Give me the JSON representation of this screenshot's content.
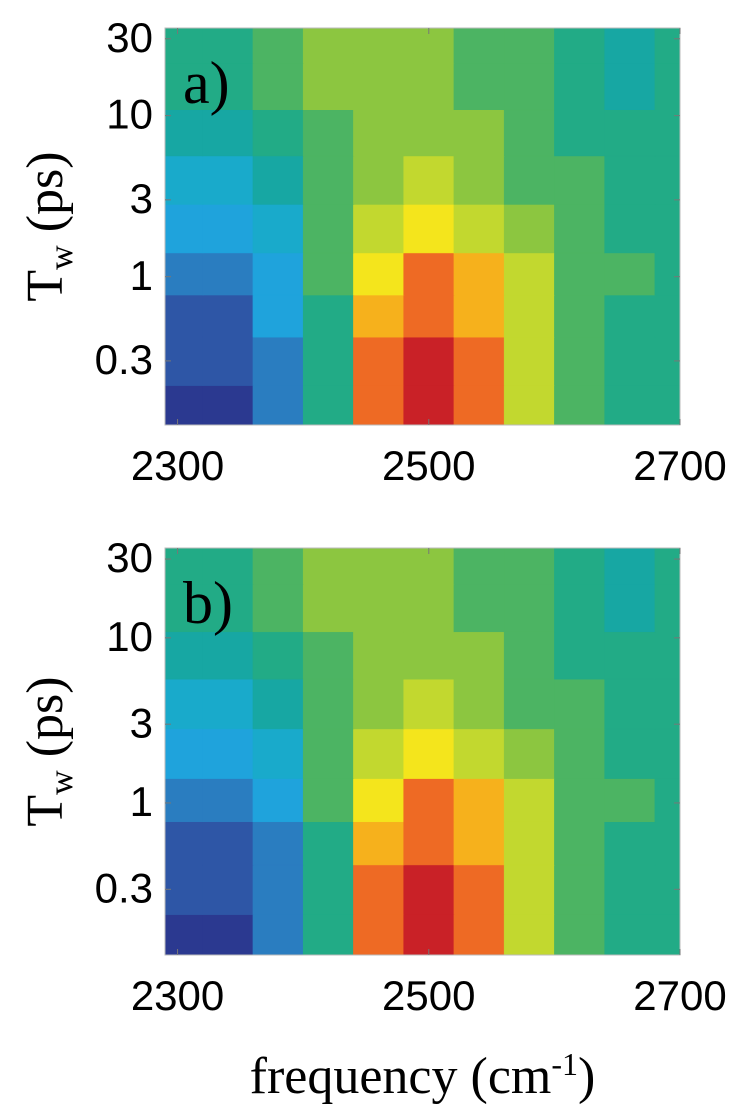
{
  "chart_data": [
    {
      "type": "contour",
      "panel_label": "a)",
      "ylabel": "T",
      "ylabel_sub": "w",
      "ylabel_rest": " (ps)",
      "x": [
        2300,
        2340,
        2380,
        2420,
        2460,
        2500,
        2540,
        2580,
        2620,
        2660,
        2700
      ],
      "y": [
        0.15,
        0.3,
        0.6,
        1,
        2,
        4,
        8,
        15,
        30
      ],
      "z": [
        [
          -0.9,
          -0.9,
          -0.7,
          -0.1,
          0.8,
          0.95,
          0.8,
          0.4,
          0.1,
          -0.05,
          -0.05
        ],
        [
          -0.85,
          -0.85,
          -0.65,
          -0.1,
          0.75,
          0.9,
          0.75,
          0.35,
          0.1,
          -0.05,
          -0.05
        ],
        [
          -0.8,
          -0.8,
          -0.55,
          -0.05,
          0.65,
          0.85,
          0.7,
          0.3,
          0.1,
          -0.05,
          -0.05
        ],
        [
          -0.7,
          -0.7,
          -0.45,
          0,
          0.5,
          0.75,
          0.6,
          0.3,
          0.1,
          0,
          -0.05
        ],
        [
          -0.5,
          -0.5,
          -0.35,
          0.05,
          0.35,
          0.5,
          0.4,
          0.2,
          0.05,
          -0.05,
          -0.05
        ],
        [
          -0.3,
          -0.3,
          -0.2,
          0.05,
          0.25,
          0.35,
          0.25,
          0.1,
          0,
          -0.05,
          -0.05
        ],
        [
          -0.15,
          -0.15,
          -0.05,
          0.1,
          0.2,
          0.25,
          0.15,
          0.05,
          -0.05,
          -0.1,
          -0.05
        ],
        [
          -0.05,
          -0.05,
          0.05,
          0.15,
          0.2,
          0.2,
          0.1,
          0,
          -0.1,
          -0.15,
          -0.05
        ],
        [
          -0.05,
          -0.05,
          0.05,
          0.15,
          0.2,
          0.2,
          0.1,
          0,
          -0.1,
          -0.15,
          -0.05
        ]
      ],
      "zlim": [
        -1,
        1
      ],
      "colors": [
        "#2b3990",
        "#2e56a6",
        "#2a7dc0",
        "#1fa3dc",
        "#19aacb",
        "#17a7a3",
        "#22ab86",
        "#4cb463",
        "#8cc640",
        "#c2d82f",
        "#f4e51c",
        "#f6b11c",
        "#ee6a24",
        "#c92127"
      ],
      "xlim": [
        2290,
        2700
      ],
      "ylim": [
        0.12,
        35
      ],
      "log_y": true,
      "xticks": [
        2300,
        2500,
        2700
      ],
      "yticks": [
        0.3,
        1,
        3,
        10,
        30
      ]
    },
    {
      "type": "contour",
      "panel_label": "b)",
      "ylabel": "T",
      "ylabel_sub": "w",
      "ylabel_rest": " (ps)",
      "xlabel": "frequency (cm",
      "xlabel_sup": "-1",
      "xlabel_rest": ")",
      "x": [
        2300,
        2340,
        2380,
        2420,
        2460,
        2500,
        2540,
        2580,
        2620,
        2660,
        2700
      ],
      "y": [
        0.15,
        0.3,
        0.6,
        1,
        2,
        4,
        8,
        15,
        30
      ],
      "z": [
        [
          -0.9,
          -0.9,
          -0.7,
          -0.1,
          0.8,
          0.95,
          0.8,
          0.4,
          0.1,
          -0.05,
          -0.05
        ],
        [
          -0.85,
          -0.85,
          -0.65,
          -0.1,
          0.75,
          0.9,
          0.75,
          0.4,
          0.1,
          -0.05,
          -0.05
        ],
        [
          -0.8,
          -0.8,
          -0.6,
          -0.05,
          0.65,
          0.85,
          0.7,
          0.35,
          0.1,
          -0.05,
          -0.05
        ],
        [
          -0.7,
          -0.7,
          -0.5,
          0,
          0.5,
          0.75,
          0.6,
          0.3,
          0.1,
          0,
          -0.05
        ],
        [
          -0.5,
          -0.5,
          -0.35,
          0.05,
          0.35,
          0.5,
          0.4,
          0.2,
          0.05,
          -0.05,
          -0.05
        ],
        [
          -0.3,
          -0.3,
          -0.2,
          0.05,
          0.25,
          0.35,
          0.25,
          0.1,
          0,
          -0.05,
          -0.05
        ],
        [
          -0.15,
          -0.15,
          -0.05,
          0.1,
          0.2,
          0.25,
          0.15,
          0.05,
          -0.05,
          -0.1,
          -0.05
        ],
        [
          -0.05,
          -0.05,
          0.05,
          0.15,
          0.2,
          0.2,
          0.1,
          0,
          -0.1,
          -0.15,
          -0.05
        ],
        [
          -0.05,
          -0.05,
          0.05,
          0.15,
          0.2,
          0.2,
          0.1,
          0,
          -0.1,
          -0.15,
          -0.05
        ]
      ],
      "zlim": [
        -1,
        1
      ],
      "colors": [
        "#2b3990",
        "#2e56a6",
        "#2a7dc0",
        "#1fa3dc",
        "#19aacb",
        "#17a7a3",
        "#22ab86",
        "#4cb463",
        "#8cc640",
        "#c2d82f",
        "#f4e51c",
        "#f6b11c",
        "#ee6a24",
        "#c92127"
      ],
      "xlim": [
        2290,
        2700
      ],
      "ylim": [
        0.12,
        35
      ],
      "log_y": true,
      "xticks": [
        2300,
        2500,
        2700
      ],
      "yticks": [
        0.3,
        1,
        3,
        10,
        30
      ]
    }
  ]
}
